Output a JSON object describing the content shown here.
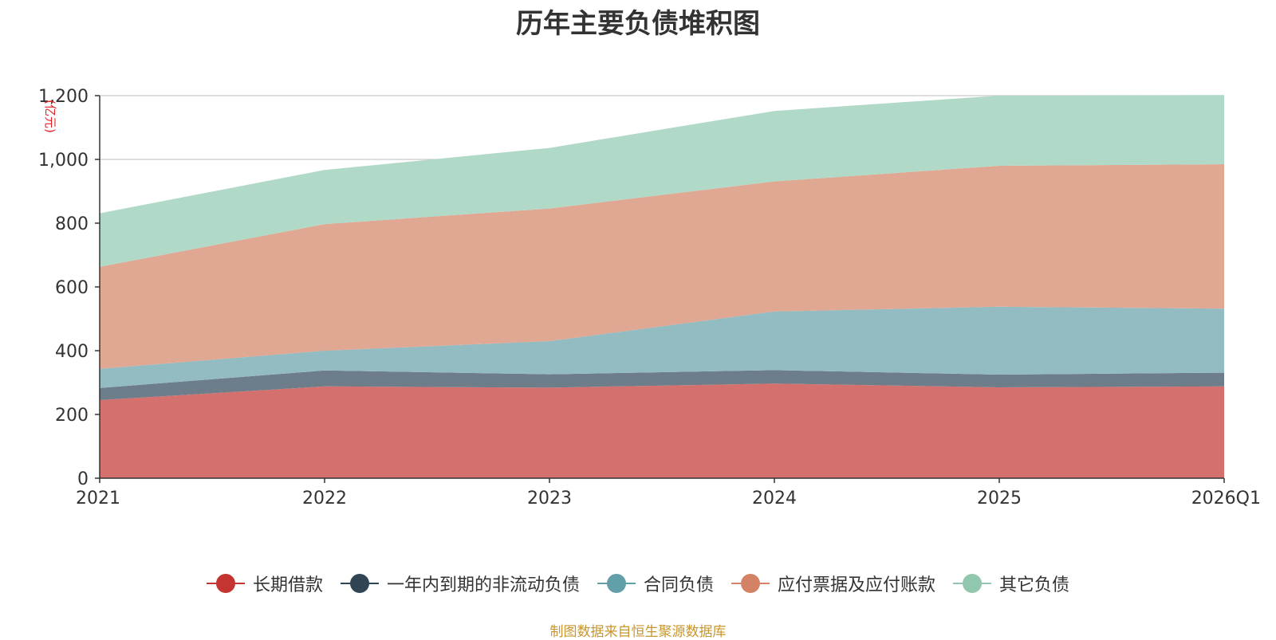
{
  "title": "历年主要负债堆积图",
  "source_note": "制图数据来自恒生聚源数据库",
  "chart_data": {
    "type": "area",
    "stacked": true,
    "title": "历年主要负债堆积图",
    "ylabel": "(亿元)",
    "xlabel": "",
    "categories": [
      "2021",
      "2022",
      "2023",
      "2024",
      "2025",
      "2026Q1"
    ],
    "ylim": [
      0,
      1200
    ],
    "yticks": [
      0,
      200,
      400,
      600,
      800,
      1000,
      1200
    ],
    "ytick_labels": [
      "0",
      "200",
      "400",
      "600",
      "800",
      "1,000",
      "1,200"
    ],
    "grid": true,
    "legend_position": "bottom",
    "series": [
      {
        "name": "长期借款",
        "color": "#c23531",
        "fill": "#d4706d",
        "values": [
          245,
          288,
          284,
          297,
          285,
          288
        ]
      },
      {
        "name": "一年内到期的非流动负债",
        "color": "#2f4554",
        "fill": "#6e7d8a",
        "values": [
          38,
          50,
          42,
          42,
          40,
          43
        ]
      },
      {
        "name": "合同负债",
        "color": "#61a0a8",
        "fill": "#93bcc2",
        "values": [
          60,
          62,
          104,
          184,
          213,
          201
        ]
      },
      {
        "name": "应付票据及应付账款",
        "color": "#d48265",
        "fill": "#e0a793",
        "values": [
          320,
          397,
          416,
          408,
          442,
          453
        ]
      },
      {
        "name": "其它负债",
        "color": "#91c7ae",
        "fill": "#b1d9c7",
        "values": [
          168,
          170,
          190,
          221,
          220,
          217
        ]
      }
    ]
  }
}
